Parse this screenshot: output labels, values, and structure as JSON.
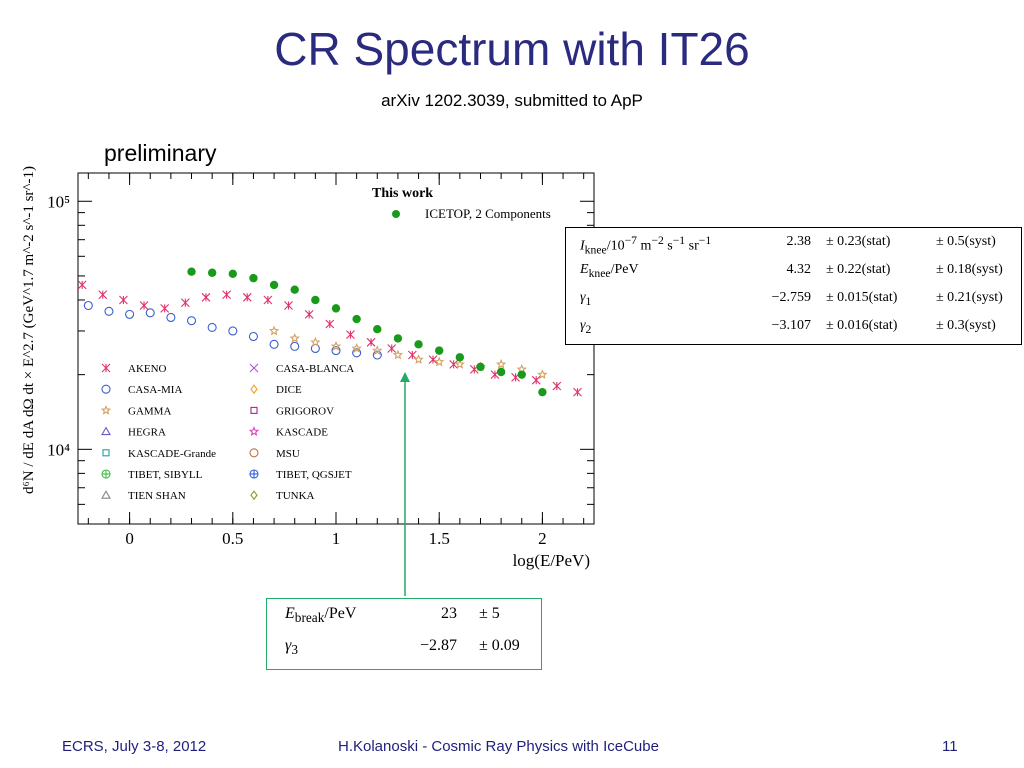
{
  "slide": {
    "title": "CR Spectrum with IT26",
    "subtitle": "arXiv 1202.3039, submitted to ApP",
    "preliminary": "preliminary"
  },
  "footer": {
    "left": "ECRS, July 3-8, 2012",
    "center": "H.Kolanoski - Cosmic Ray Physics with IceCube",
    "page": "11"
  },
  "colors": {
    "title": "#2a2a7e",
    "footer": "#1f1f7a",
    "icetop": "#1a9a1a",
    "arrow": "#22aa66"
  },
  "chart_data": {
    "type": "scatter",
    "xlabel": "log(E/PeV)",
    "ylabel": "d⁶N / dE dA dΩ dt × E^2.7 (GeV^1.7 m^-2 s^-1 sr^-1)",
    "xlim": [
      -0.25,
      2.25
    ],
    "ylim": [
      5000,
      130000
    ],
    "yscale": "log",
    "x_ticks": [
      "0",
      "0.5",
      "1",
      "1.5",
      "2"
    ],
    "y_ticks": [
      "10⁴",
      "10⁵"
    ],
    "legend_header": "This work",
    "icetop_label": "ICETOP, 2 Components",
    "legend_left": [
      {
        "label": "AKENO",
        "marker": "asterisk",
        "color": "#e0306a"
      },
      {
        "label": "CASA-MIA",
        "marker": "circle",
        "color": "#3a5fcd"
      },
      {
        "label": "GAMMA",
        "marker": "star",
        "color": "#d2a060"
      },
      {
        "label": "HEGRA",
        "marker": "triangle",
        "color": "#6a5acd"
      },
      {
        "label": "KASCADE-Grande",
        "marker": "square",
        "color": "#20a0a0"
      },
      {
        "label": "TIBET, SIBYLL",
        "marker": "cross-circle",
        "color": "#44bb44"
      },
      {
        "label": "TIEN SHAN",
        "marker": "triangle",
        "color": "#888888"
      }
    ],
    "legend_right": [
      {
        "label": "CASA-BLANCA",
        "marker": "x",
        "color": "#b050d0"
      },
      {
        "label": "DICE",
        "marker": "diamond",
        "color": "#f0a020"
      },
      {
        "label": "GRIGOROV",
        "marker": "square",
        "color": "#b02090"
      },
      {
        "label": "KASCADE",
        "marker": "star",
        "color": "#e040c0"
      },
      {
        "label": "MSU",
        "marker": "circle",
        "color": "#c07040"
      },
      {
        "label": "TIBET, QGSJET",
        "marker": "cross-circle",
        "color": "#3060d0"
      },
      {
        "label": "TUNKA",
        "marker": "diamond",
        "color": "#80a020"
      }
    ],
    "icetop_points": {
      "x": [
        0.3,
        0.4,
        0.5,
        0.6,
        0.7,
        0.8,
        0.9,
        1.0,
        1.1,
        1.2,
        1.3,
        1.4,
        1.5,
        1.6,
        1.7,
        1.8,
        1.9,
        2.0
      ],
      "y": [
        52000,
        51500,
        51000,
        49000,
        46000,
        44000,
        40000,
        37000,
        33500,
        30500,
        28000,
        26500,
        25000,
        23500,
        21500,
        20500,
        20000,
        17000
      ]
    },
    "series": [
      {
        "name": "AKENO",
        "x": [
          -0.23,
          -0.13,
          -0.03,
          0.07,
          0.17,
          0.27,
          0.37,
          0.47,
          0.57,
          0.67,
          0.77,
          0.87,
          0.97,
          1.07,
          1.17,
          1.27,
          1.37,
          1.47,
          1.57,
          1.67,
          1.77,
          1.87,
          1.97,
          2.07,
          2.17
        ],
        "y": [
          46000,
          42000,
          40000,
          38000,
          37000,
          39000,
          41000,
          42000,
          41000,
          40000,
          38000,
          35000,
          32000,
          29000,
          27000,
          25500,
          24000,
          23000,
          22000,
          21000,
          20000,
          19500,
          19000,
          18000,
          17000
        ]
      },
      {
        "name": "CASA-MIA",
        "x": [
          -0.2,
          -0.1,
          0.0,
          0.1,
          0.2,
          0.3,
          0.4,
          0.5,
          0.6,
          0.7,
          0.8,
          0.9,
          1.0,
          1.1,
          1.2
        ],
        "y": [
          38000,
          36000,
          35000,
          35500,
          34000,
          33000,
          31000,
          30000,
          28500,
          26500,
          26000,
          25500,
          25000,
          24500,
          24000
        ]
      },
      {
        "name": "GAMMA",
        "x": [
          0.7,
          0.8,
          0.9,
          1.0,
          1.1,
          1.2,
          1.3,
          1.4,
          1.5,
          1.6,
          1.7,
          1.8,
          1.9,
          2.0
        ],
        "y": [
          30000,
          28000,
          27000,
          26000,
          25500,
          25000,
          24000,
          23000,
          22500,
          22000,
          21500,
          22000,
          21000,
          20000
        ]
      }
    ]
  },
  "knee_table": {
    "rows": [
      {
        "param_html": "<i>I</i><sub>knee</sub>/10<sup>−7</sup> m<sup>−2</sup> s<sup>−1</sup> sr<sup>−1</sup>",
        "value": "2.38",
        "stat": "± 0.23(stat)",
        "syst": "± 0.5(syst)"
      },
      {
        "param_html": "<i>E</i><sub>knee</sub>/PeV",
        "value": "4.32",
        "stat": "± 0.22(stat)",
        "syst": "± 0.18(syst)"
      },
      {
        "param_html": "<i>γ</i><sub>1</sub>",
        "value": "−2.759",
        "stat": "± 0.015(stat)",
        "syst": "± 0.21(syst)"
      },
      {
        "param_html": "<i>γ</i><sub>2</sub>",
        "value": "−3.107",
        "stat": "± 0.016(stat)",
        "syst": "± 0.3(syst)"
      }
    ]
  },
  "break_table": {
    "rows": [
      {
        "param_html": "<i>E</i><sub>break</sub>/PeV",
        "value": "23",
        "err": "± 5"
      },
      {
        "param_html": "<i>γ</i><sub>3</sub>",
        "value": "−2.87",
        "err": "± 0.09"
      }
    ]
  }
}
